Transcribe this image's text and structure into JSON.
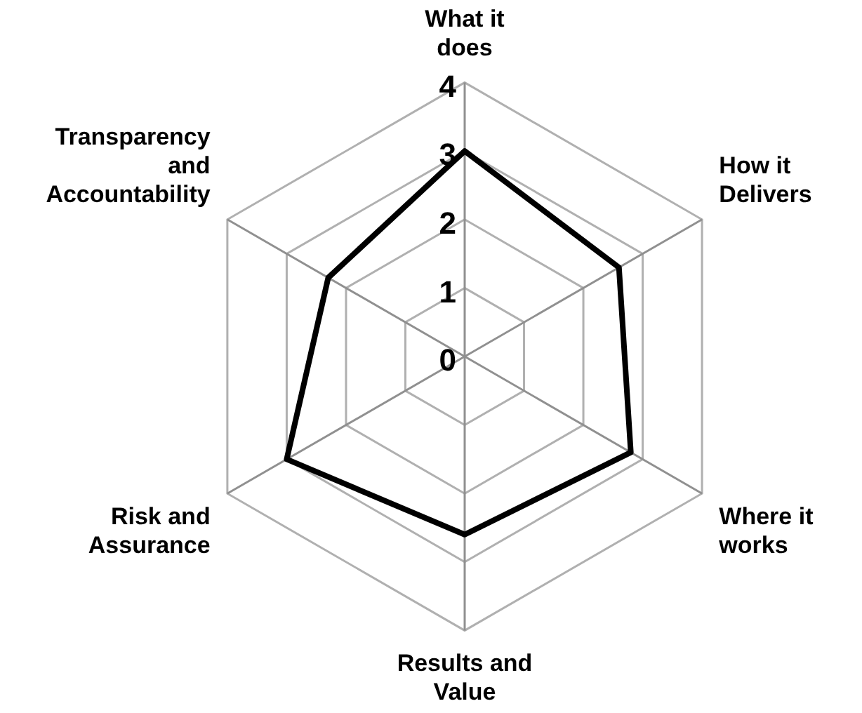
{
  "chart_data": {
    "type": "radar",
    "categories": [
      "What it does",
      "How it Delivers",
      "Where it works",
      "Results and Value",
      "Risk and Assurance",
      "Transparency and Accountability"
    ],
    "series": [
      {
        "color": "#000000",
        "values": [
          3,
          2.6,
          2.8,
          2.6,
          3,
          2.3
        ]
      }
    ],
    "ylim": [
      0,
      4
    ],
    "yticks": [
      0,
      1,
      2,
      3,
      4
    ],
    "grid": true,
    "legend": false,
    "marker": "none",
    "line_style": "solid"
  }
}
